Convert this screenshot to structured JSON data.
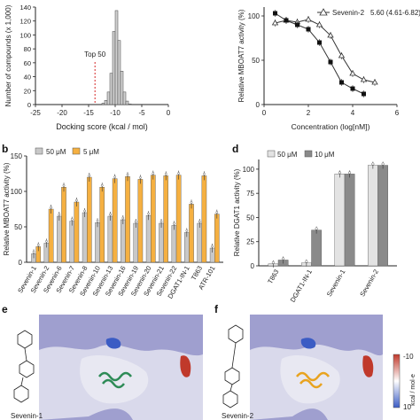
{
  "chart_data": [
    {
      "type": "bar",
      "panel": "a",
      "xlabel": "Docking score (kcal / mol)",
      "ylabel": "Number of compounds (x 1,000)",
      "xticks": [
        "-25",
        "-20",
        "-15",
        "-10",
        "-5",
        "0"
      ],
      "yticks": [
        "0",
        "20",
        "40",
        "60",
        "80",
        "100",
        "120",
        "140"
      ],
      "xlim": [
        -25,
        0
      ],
      "ylim": [
        0,
        140
      ],
      "bins": [
        -12.5,
        -12,
        -11.5,
        -11,
        -10.5,
        -10,
        -9.5,
        -9,
        -8.5,
        -8,
        -7.5
      ],
      "values": [
        2,
        6,
        18,
        45,
        105,
        135,
        92,
        48,
        18,
        5,
        1
      ],
      "annotation": "Top 50",
      "annotation_x": -13.8
    },
    {
      "type": "scatter",
      "panel": "dose-response",
      "xlabel": "Concentration (log[nM])",
      "ylabel": "Relative MBOAT7 activity (%)",
      "xticks": [
        "0",
        "2",
        "4",
        "6"
      ],
      "yticks": [
        "0",
        "50",
        "100"
      ],
      "xlim": [
        0,
        6
      ],
      "ylim": [
        0,
        110
      ],
      "legend": {
        "label": "Sevenin-2",
        "value": "5.60 (4.61-6.82)",
        "position": "top-right"
      },
      "series": [
        {
          "x": [
            0.5,
            1,
            1.5,
            2,
            2.5,
            3,
            3.5,
            4,
            4.5,
            5
          ],
          "y": [
            92,
            95,
            93,
            96,
            90,
            78,
            55,
            35,
            28,
            25
          ]
        },
        {
          "x": [
            0.5,
            1,
            1.5,
            2,
            2.5,
            3,
            3.5,
            4,
            4.5
          ],
          "y": [
            103,
            95,
            90,
            85,
            70,
            48,
            25,
            18,
            12
          ]
        }
      ]
    },
    {
      "type": "bar",
      "panel": "b",
      "ylabel": "Relative MBOAT7 activity (%)",
      "yticks": [
        "0",
        "50",
        "100",
        "150"
      ],
      "ylim": [
        0,
        150
      ],
      "categories": [
        "Sevenin-1",
        "Sevenin-2",
        "Sevenin-6",
        "Sevenin-7",
        "Sevenin-8",
        "Sevenin-10",
        "Sevenin-13",
        "Sevenin-16",
        "Sevenin-19",
        "Sevenin-20",
        "Sevenin-21",
        "Sevenin-22",
        "DGAT1-IN-1",
        "T863",
        "ATR-101"
      ],
      "series": [
        {
          "name": "50 μM",
          "color": "#c8c8c8",
          "values": [
            12,
            27,
            65,
            58,
            70,
            56,
            65,
            60,
            55,
            66,
            55,
            52,
            42,
            55,
            20
          ]
        },
        {
          "name": "5 μM",
          "color": "#f5b041",
          "values": [
            22,
            75,
            106,
            85,
            120,
            106,
            118,
            121,
            117,
            123,
            122,
            123,
            82,
            122,
            68
          ]
        }
      ]
    },
    {
      "type": "bar",
      "panel": "d",
      "ylabel": "Relative DGAT1 activity (%)",
      "yticks": [
        "0",
        "25",
        "50",
        "75",
        "100"
      ],
      "ylim": [
        0,
        110
      ],
      "categories": [
        "T863",
        "DGAT1-IN-1",
        "Sevenin-1",
        "Sevenin-2"
      ],
      "series": [
        {
          "name": "50 μM",
          "color": "#e3e3e3",
          "values": [
            2,
            3,
            95,
            104
          ]
        },
        {
          "name": "10 μM",
          "color": "#8a8a8a",
          "values": [
            6,
            37,
            95,
            104
          ]
        }
      ]
    }
  ],
  "panels": {
    "b": "b",
    "d": "d",
    "e": "e",
    "f": "f"
  },
  "structures": {
    "e_label": "Sevenin-1",
    "f_label": "Sevenin-2",
    "colorbar_top": "-10",
    "colorbar_bottom": "10",
    "colorbar_unit": "kcal / mol·e"
  }
}
